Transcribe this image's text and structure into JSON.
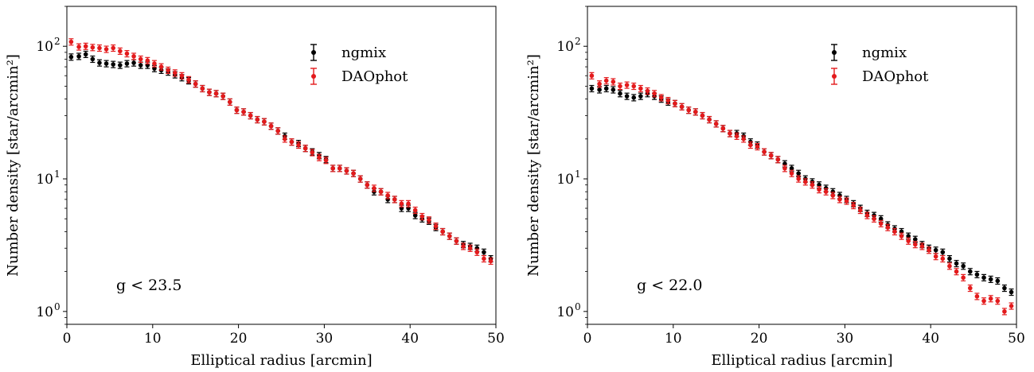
{
  "chart_data": [
    {
      "type": "scatter",
      "xlabel": "Elliptical radius [arcmin]",
      "ylabel": "Number density [star/arcmin²]",
      "xlim": [
        0,
        50
      ],
      "ylim": [
        0.8,
        200
      ],
      "y_scale": "log",
      "x_ticks": [
        0,
        10,
        20,
        30,
        40,
        50
      ],
      "y_ticks": [
        {
          "value": 1,
          "label": "10",
          "exp": "0"
        },
        {
          "value": 10,
          "label": "10",
          "exp": "1"
        },
        {
          "value": 100,
          "label": "10",
          "exp": "2"
        }
      ],
      "legend_position": "top-right",
      "annotation": "g < 23.5",
      "series": [
        {
          "name": "ngmix",
          "color": "#000000",
          "x": [
            0.5,
            1.4,
            2.2,
            3.0,
            3.8,
            4.6,
            5.4,
            6.2,
            7.0,
            7.8,
            8.6,
            9.4,
            10.2,
            11.0,
            11.8,
            12.6,
            13.4,
            14.2,
            15.0,
            15.8,
            16.6,
            17.4,
            18.2,
            19.0,
            19.8,
            20.6,
            21.4,
            22.2,
            23.0,
            23.8,
            24.6,
            25.4,
            26.2,
            27.0,
            27.8,
            28.6,
            29.4,
            30.2,
            31.0,
            31.8,
            32.6,
            33.4,
            34.2,
            35.0,
            35.8,
            36.6,
            37.4,
            38.2,
            39.0,
            39.8,
            40.6,
            41.4,
            42.2,
            43.0,
            43.8,
            44.6,
            45.4,
            46.2,
            47.0,
            47.8,
            48.6,
            49.4
          ],
          "y": [
            83,
            84,
            87,
            80,
            75,
            74,
            73,
            72,
            74,
            75,
            72,
            72,
            68,
            66,
            64,
            61,
            58,
            55,
            52,
            48,
            45,
            44,
            42,
            38,
            33,
            32,
            30,
            28,
            27,
            25,
            23,
            21,
            19,
            18.5,
            17,
            16,
            15,
            14,
            12,
            12,
            11.5,
            11,
            10,
            9,
            8,
            8,
            7,
            7,
            6,
            6,
            5.3,
            5,
            4.8,
            4.3,
            4,
            3.7,
            3.4,
            3.2,
            3.1,
            3.0,
            2.8,
            2.5
          ]
        },
        {
          "name": "DAOphot",
          "color": "#e31a1c",
          "x": [
            0.5,
            1.4,
            2.2,
            3.0,
            3.8,
            4.6,
            5.4,
            6.2,
            7.0,
            7.8,
            8.6,
            9.4,
            10.2,
            11.0,
            11.8,
            12.6,
            13.4,
            14.2,
            15.0,
            15.8,
            16.6,
            17.4,
            18.2,
            19.0,
            19.8,
            20.6,
            21.4,
            22.2,
            23.0,
            23.8,
            24.6,
            25.4,
            26.2,
            27.0,
            27.8,
            28.6,
            29.4,
            30.2,
            31.0,
            31.8,
            32.6,
            33.4,
            34.2,
            35.0,
            35.8,
            36.6,
            37.4,
            38.2,
            39.0,
            39.8,
            40.6,
            41.4,
            42.2,
            43.0,
            43.8,
            44.6,
            45.4,
            46.2,
            47.0,
            47.8,
            48.6,
            49.4
          ],
          "y": [
            108,
            99,
            100,
            98,
            97,
            95,
            97,
            92,
            88,
            84,
            80,
            78,
            74,
            70,
            66,
            63,
            60,
            56,
            52,
            48,
            45,
            44,
            42,
            38,
            33,
            32,
            30,
            28,
            27,
            25,
            23,
            20,
            19,
            18,
            17,
            15.8,
            14.5,
            13.8,
            12,
            12,
            11.5,
            11,
            10,
            9,
            8.5,
            8,
            7.5,
            7,
            6.5,
            6.5,
            5.8,
            5.2,
            4.9,
            4.4,
            4,
            3.7,
            3.4,
            3.1,
            3.0,
            2.8,
            2.5,
            2.4
          ]
        }
      ]
    },
    {
      "type": "scatter",
      "xlabel": "Elliptical radius [arcmin]",
      "ylabel": "Number density [star/arcmin²]",
      "xlim": [
        0,
        50
      ],
      "ylim": [
        0.8,
        200
      ],
      "y_scale": "log",
      "x_ticks": [
        0,
        10,
        20,
        30,
        40,
        50
      ],
      "y_ticks": [
        {
          "value": 1,
          "label": "10",
          "exp": "0"
        },
        {
          "value": 10,
          "label": "10",
          "exp": "1"
        },
        {
          "value": 100,
          "label": "10",
          "exp": "2"
        }
      ],
      "legend_position": "top-right",
      "annotation": "g < 22.0",
      "series": [
        {
          "name": "ngmix",
          "color": "#000000",
          "x": [
            0.5,
            1.4,
            2.2,
            3.0,
            3.8,
            4.6,
            5.4,
            6.2,
            7.0,
            7.8,
            8.6,
            9.4,
            10.2,
            11.0,
            11.8,
            12.6,
            13.4,
            14.2,
            15.0,
            15.8,
            16.6,
            17.4,
            18.2,
            19.0,
            19.8,
            20.6,
            21.4,
            22.2,
            23.0,
            23.8,
            24.6,
            25.4,
            26.2,
            27.0,
            27.8,
            28.6,
            29.4,
            30.2,
            31.0,
            31.8,
            32.6,
            33.4,
            34.2,
            35.0,
            35.8,
            36.6,
            37.4,
            38.2,
            39.0,
            39.8,
            40.6,
            41.4,
            42.2,
            43.0,
            43.8,
            44.6,
            45.4,
            46.2,
            47.0,
            47.8,
            48.6,
            49.4
          ],
          "y": [
            48,
            47,
            48,
            47,
            44,
            42,
            41,
            42,
            44,
            42,
            40,
            38,
            37,
            35,
            33,
            32,
            30,
            28,
            26,
            24,
            22,
            22,
            21,
            19,
            18,
            16,
            15,
            14,
            13,
            12,
            11,
            10,
            9.5,
            9,
            8.5,
            8,
            7.5,
            7,
            6.5,
            6,
            5.5,
            5.3,
            5,
            4.5,
            4.2,
            4.0,
            3.7,
            3.5,
            3.2,
            3.0,
            2.9,
            2.8,
            2.5,
            2.3,
            2.2,
            2.0,
            1.9,
            1.8,
            1.75,
            1.7,
            1.5,
            1.4
          ]
        },
        {
          "name": "DAOphot",
          "color": "#e31a1c",
          "x": [
            0.5,
            1.4,
            2.2,
            3.0,
            3.8,
            4.6,
            5.4,
            6.2,
            7.0,
            7.8,
            8.6,
            9.4,
            10.2,
            11.0,
            11.8,
            12.6,
            13.4,
            14.2,
            15.0,
            15.8,
            16.6,
            17.4,
            18.2,
            19.0,
            19.8,
            20.6,
            21.4,
            22.2,
            23.0,
            23.8,
            24.6,
            25.4,
            26.2,
            27.0,
            27.8,
            28.6,
            29.4,
            30.2,
            31.0,
            31.8,
            32.6,
            33.4,
            34.2,
            35.0,
            35.8,
            36.6,
            37.4,
            38.2,
            39.0,
            39.8,
            40.6,
            41.4,
            42.2,
            43.0,
            43.8,
            44.6,
            45.4,
            46.2,
            47.0,
            47.8,
            48.6,
            49.4
          ],
          "y": [
            60,
            52,
            55,
            54,
            50,
            51,
            50,
            48,
            46,
            44,
            41,
            39,
            37,
            35,
            33,
            32,
            30,
            28,
            26,
            24,
            22,
            21,
            20,
            18,
            17.5,
            16,
            15,
            14,
            12,
            11,
            10,
            9.5,
            9,
            8.3,
            8,
            7.5,
            7,
            6.8,
            6.3,
            5.8,
            5.3,
            5.0,
            4.6,
            4.3,
            4.0,
            3.7,
            3.4,
            3.2,
            3.1,
            2.9,
            2.6,
            2.5,
            2.2,
            2.0,
            1.8,
            1.5,
            1.3,
            1.2,
            1.25,
            1.2,
            1.0,
            1.1
          ]
        }
      ]
    }
  ]
}
